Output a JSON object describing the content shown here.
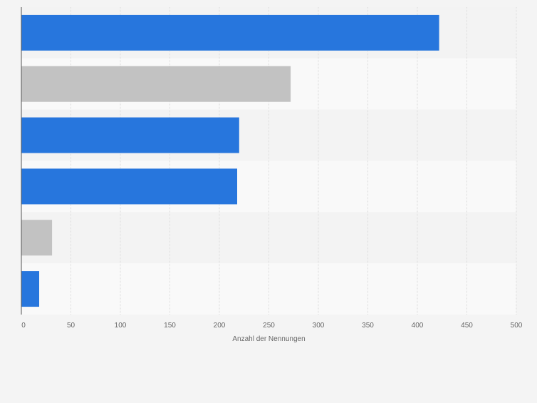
{
  "chart_data": {
    "type": "bar",
    "orientation": "horizontal",
    "categories": [
      "",
      "",
      "",
      "",
      "",
      ""
    ],
    "values": [
      422,
      272,
      220,
      218,
      31,
      18
    ],
    "bar_colors": [
      "#2776dd",
      "#c2c2c2",
      "#2776dd",
      "#2776dd",
      "#c2c2c2",
      "#2776dd"
    ],
    "xlabel": "Anzahl der Nennungen",
    "xlim": [
      0,
      500
    ],
    "xticks": [
      0,
      50,
      100,
      150,
      200,
      250,
      300,
      350,
      400,
      450,
      500
    ],
    "grid": true,
    "legend": "none"
  },
  "colors": {
    "background": "#f4f4f4",
    "band_dark": "#f3f3f3",
    "band_light": "#f9f9f9",
    "gridline": "#dcdcdc",
    "axis": "#555555",
    "tick_text": "#666666"
  }
}
